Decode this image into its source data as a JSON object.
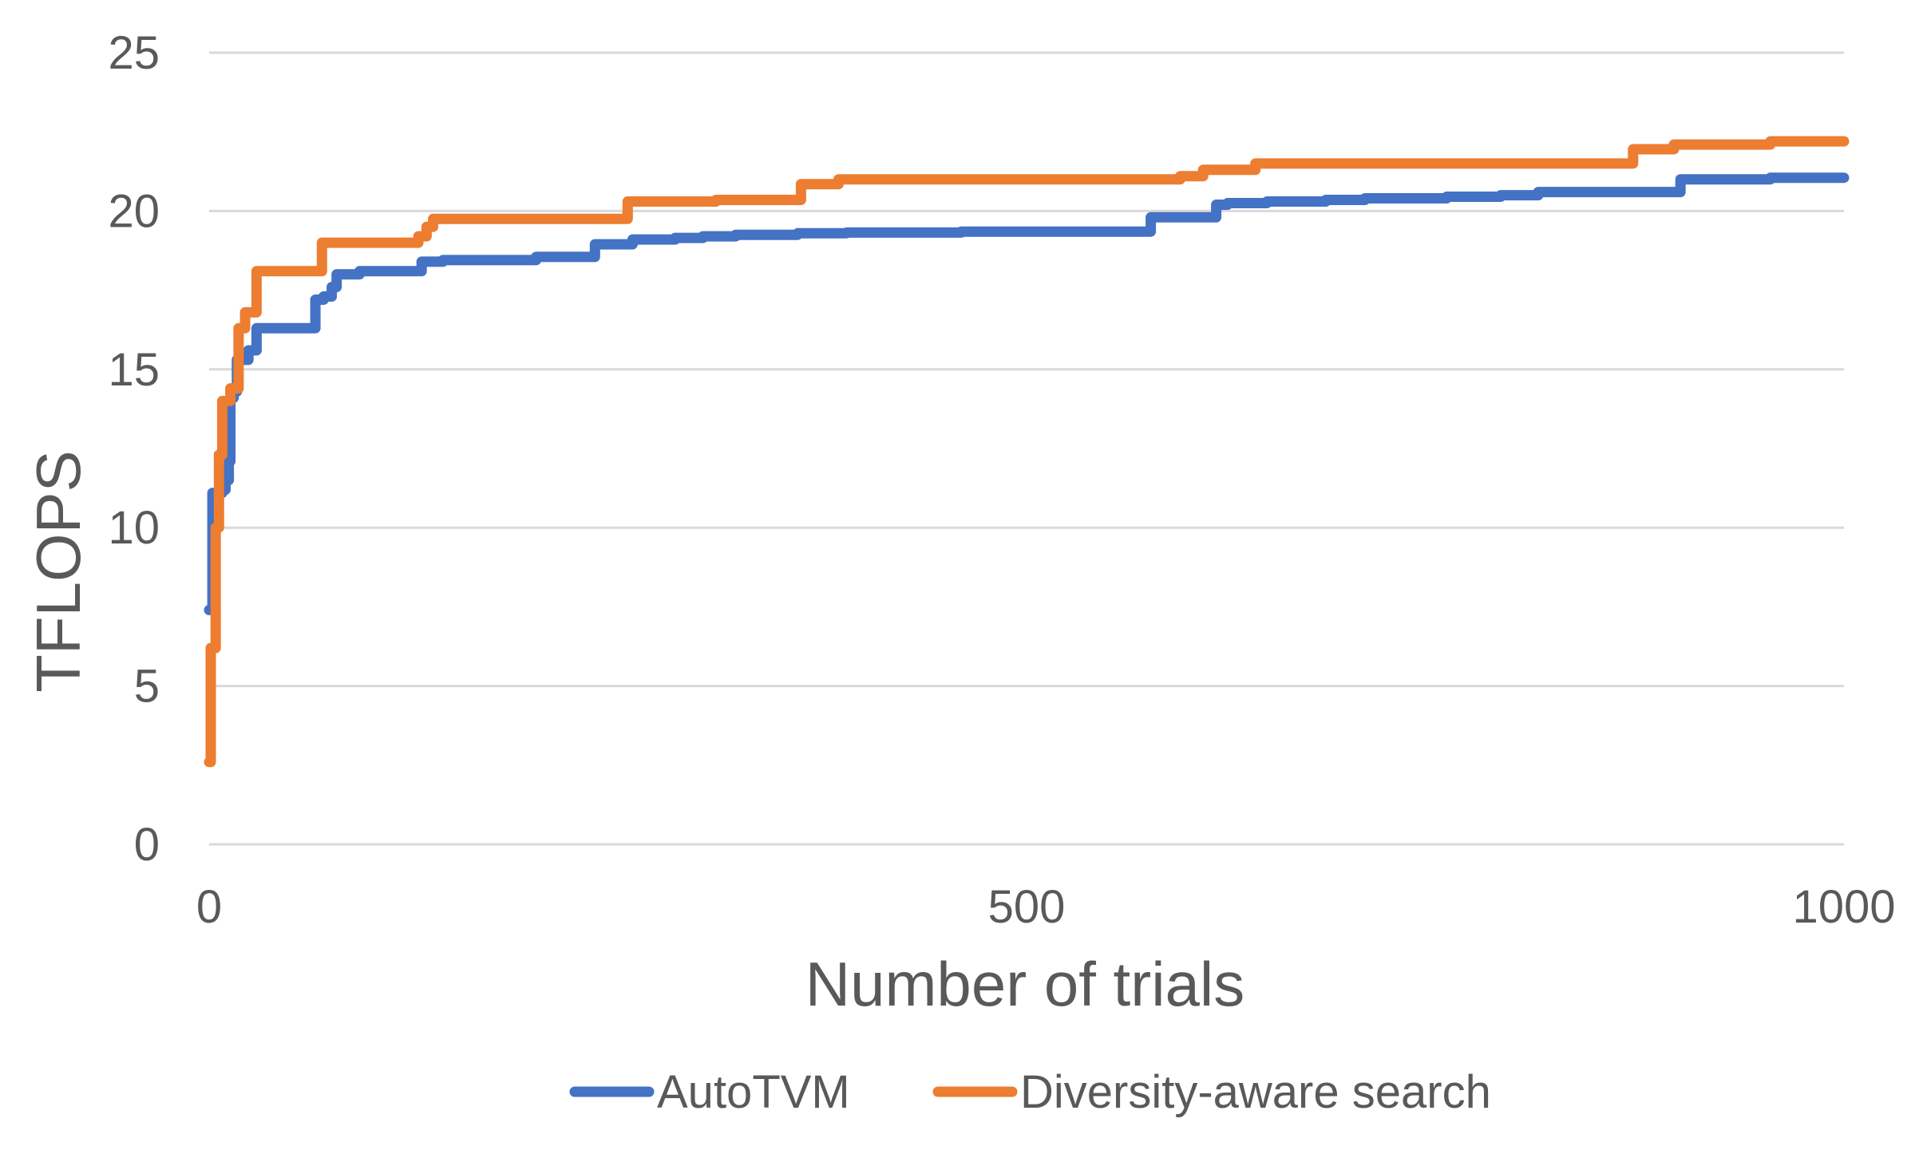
{
  "chart_data": {
    "type": "line",
    "title": "",
    "xlabel": "Number of trials",
    "ylabel": "TFLOPS",
    "xlim": [
      0,
      1000
    ],
    "ylim": [
      0,
      25
    ],
    "x_ticks": [
      {
        "value": 0,
        "label": "0"
      },
      {
        "value": 500,
        "label": "500"
      },
      {
        "value": 1000,
        "label": "1000"
      }
    ],
    "y_ticks": [
      {
        "value": 0,
        "label": "0"
      },
      {
        "value": 5,
        "label": "5"
      },
      {
        "value": 10,
        "label": "10"
      },
      {
        "value": 15,
        "label": "15"
      },
      {
        "value": 20,
        "label": "20"
      },
      {
        "value": 25,
        "label": "25"
      }
    ],
    "grid": "horizontal",
    "legend_position": "bottom",
    "series": [
      {
        "name": "AutoTVM",
        "color": "#4472C4",
        "step": true,
        "points": [
          [
            0,
            7.4
          ],
          [
            2,
            11.1
          ],
          [
            8,
            11.2
          ],
          [
            10,
            11.5
          ],
          [
            12,
            12.1
          ],
          [
            13,
            14.1
          ],
          [
            15,
            14.3
          ],
          [
            17,
            15.3
          ],
          [
            24,
            15.6
          ],
          [
            29,
            16.3
          ],
          [
            65,
            17.2
          ],
          [
            70,
            17.3
          ],
          [
            75,
            17.6
          ],
          [
            78,
            18.0
          ],
          [
            92,
            18.1
          ],
          [
            96,
            18.1
          ],
          [
            130,
            18.4
          ],
          [
            143,
            18.45
          ],
          [
            200,
            18.55
          ],
          [
            236,
            18.95
          ],
          [
            259,
            19.1
          ],
          [
            285,
            19.15
          ],
          [
            302,
            19.2
          ],
          [
            322,
            19.25
          ],
          [
            360,
            19.3
          ],
          [
            390,
            19.32
          ],
          [
            460,
            19.35
          ],
          [
            576,
            19.8
          ],
          [
            616,
            20.2
          ],
          [
            623,
            20.25
          ],
          [
            647,
            20.3
          ],
          [
            683,
            20.35
          ],
          [
            707,
            20.4
          ],
          [
            757,
            20.45
          ],
          [
            790,
            20.5
          ],
          [
            813,
            20.6
          ],
          [
            900,
            21.0
          ],
          [
            955,
            21.05
          ],
          [
            1000,
            21.05
          ]
        ]
      },
      {
        "name": "Diversity-aware search",
        "color": "#ED7D31",
        "step": true,
        "points": [
          [
            0,
            2.6
          ],
          [
            1,
            6.2
          ],
          [
            4,
            10.0
          ],
          [
            6,
            12.3
          ],
          [
            8,
            14.0
          ],
          [
            13,
            14.4
          ],
          [
            18,
            16.3
          ],
          [
            22,
            16.8
          ],
          [
            29,
            18.1
          ],
          [
            69,
            19.0
          ],
          [
            128,
            19.2
          ],
          [
            133,
            19.5
          ],
          [
            137,
            19.75
          ],
          [
            180,
            19.75
          ],
          [
            256,
            20.3
          ],
          [
            310,
            20.35
          ],
          [
            362,
            20.85
          ],
          [
            385,
            21.0
          ],
          [
            594,
            21.1
          ],
          [
            608,
            21.3
          ],
          [
            640,
            21.5
          ],
          [
            700,
            21.5
          ],
          [
            871,
            21.95
          ],
          [
            896,
            22.1
          ],
          [
            955,
            22.2
          ],
          [
            1000,
            22.2
          ]
        ]
      }
    ]
  }
}
